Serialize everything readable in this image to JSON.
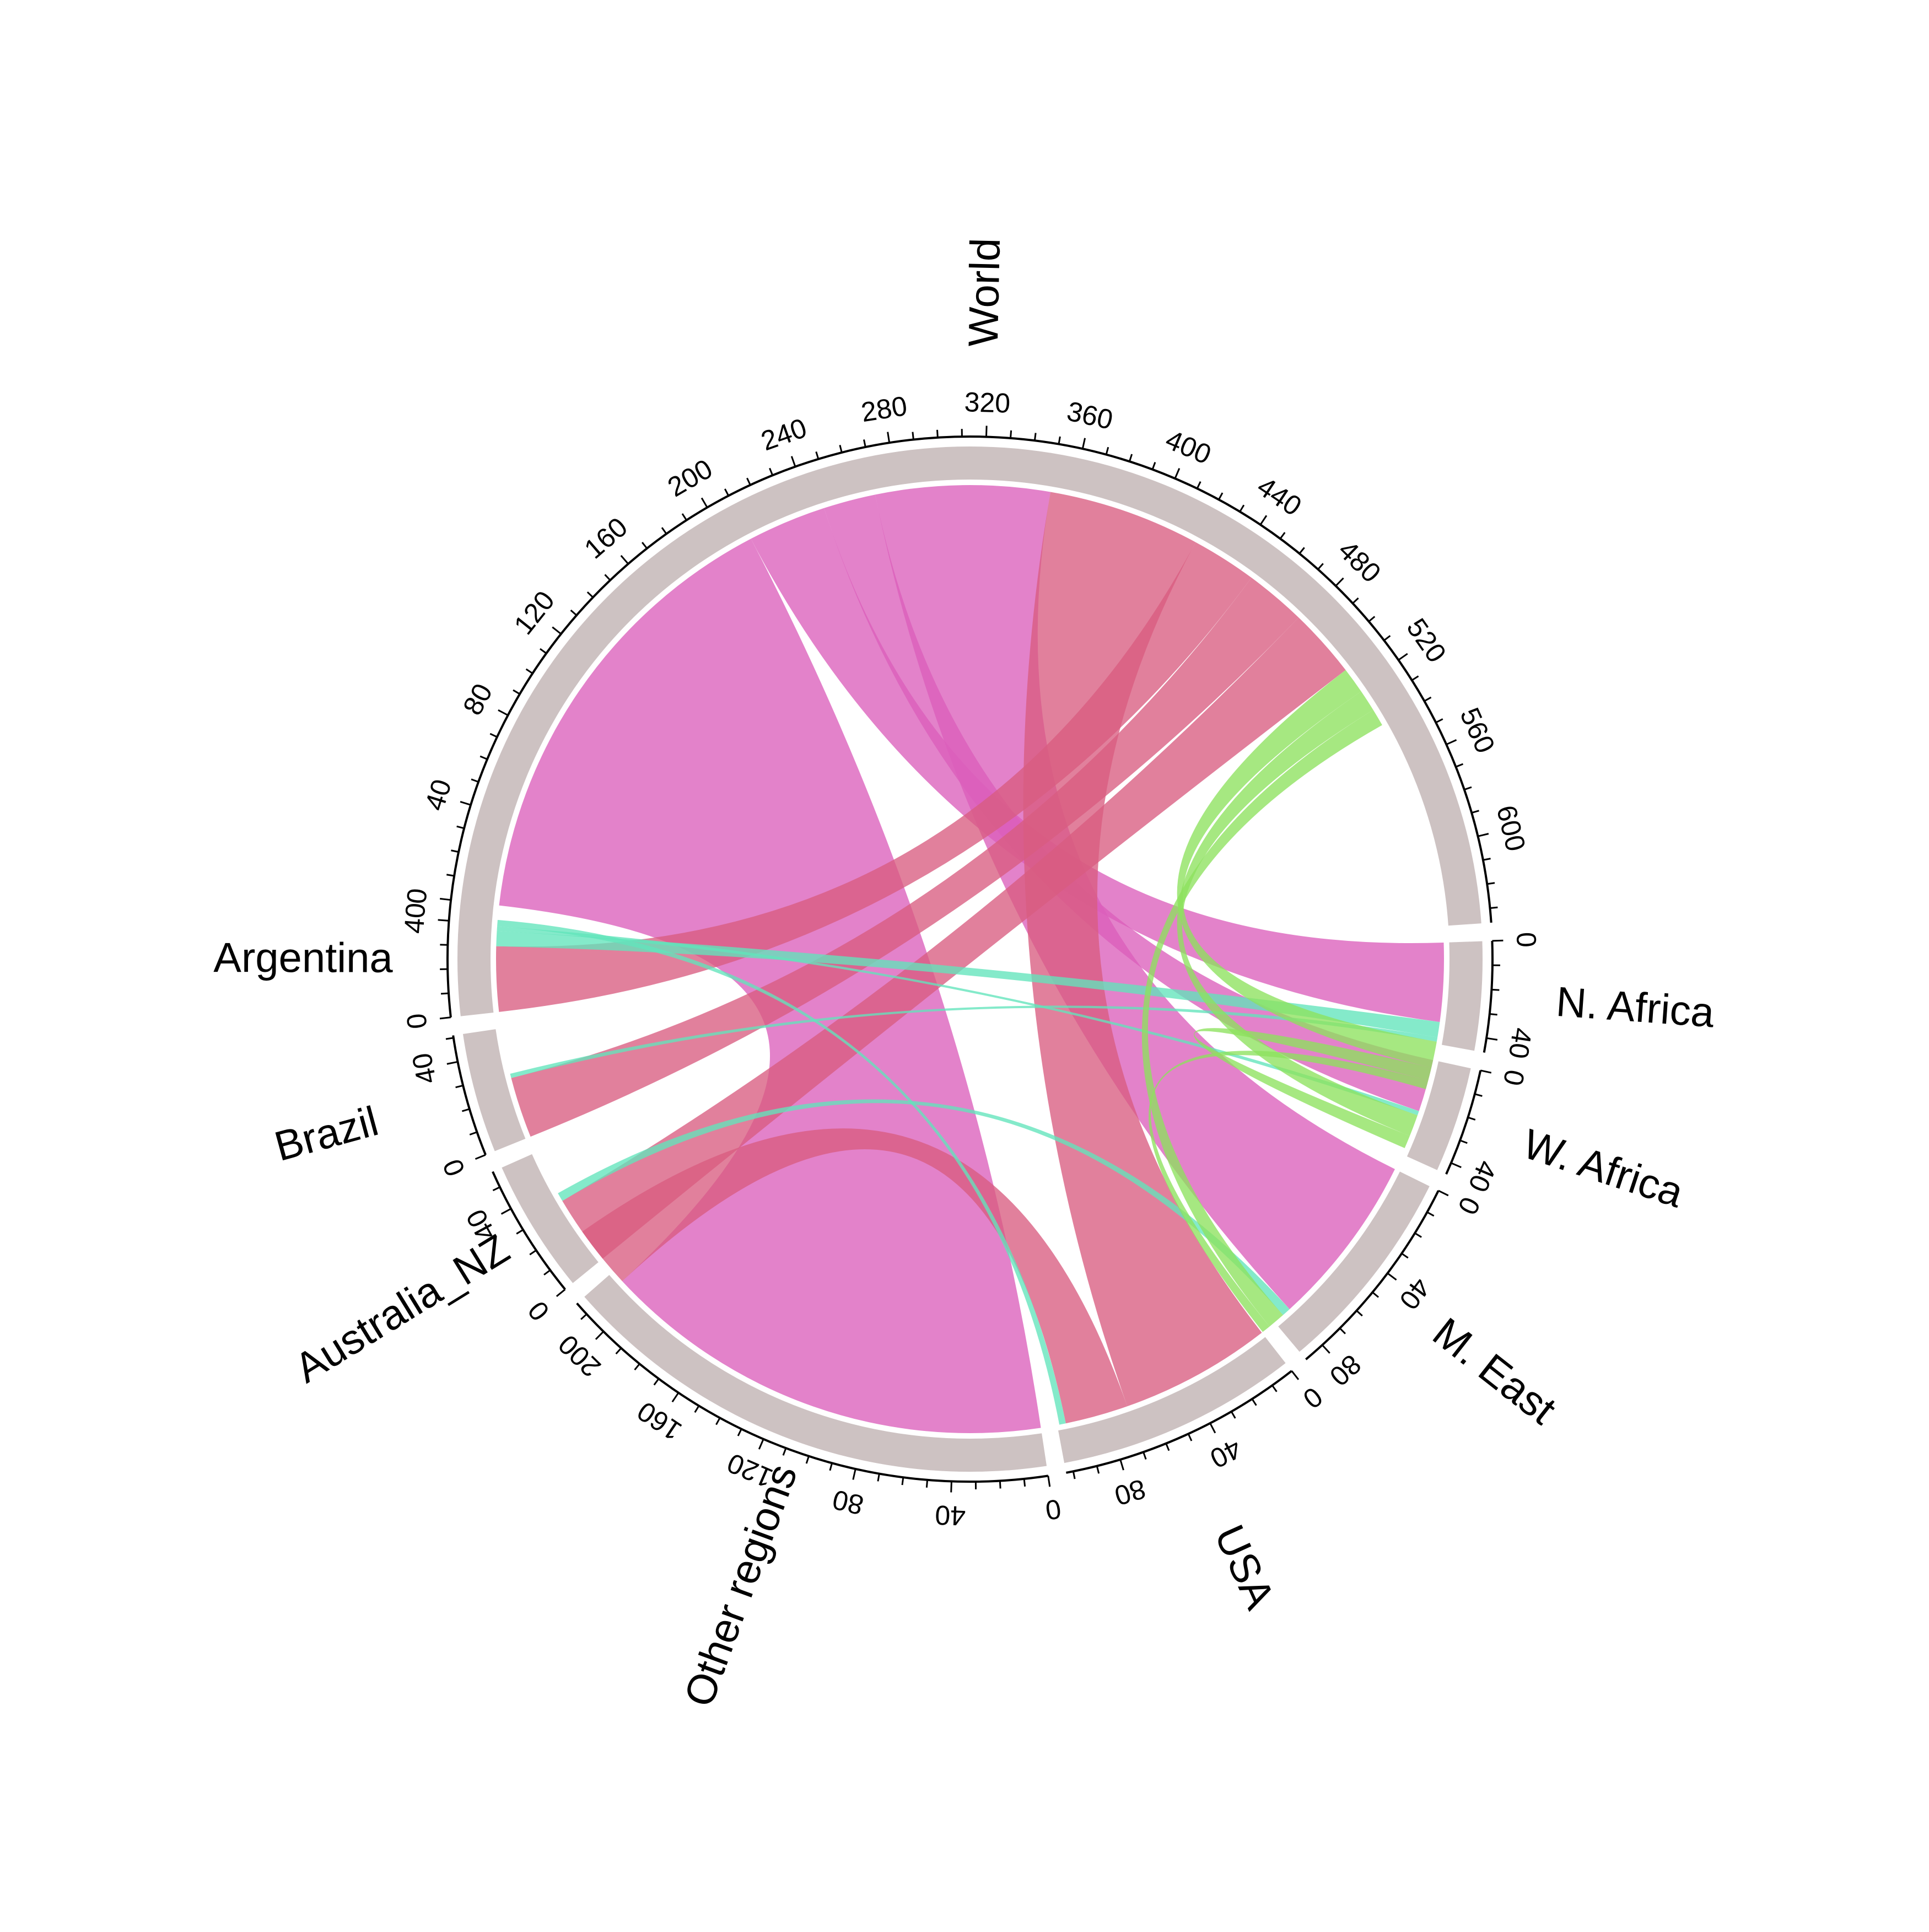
{
  "chart_data": {
    "type": "chord",
    "title": "",
    "sectors": [
      {
        "name": "World",
        "total": 636,
        "start_deg": -83.5,
        "end_deg": 86.0,
        "ticks": [
          0,
          40,
          80,
          120,
          160,
          200,
          240,
          280,
          320,
          360,
          400,
          440,
          480,
          520,
          560,
          600
        ]
      },
      {
        "name": "N. Africa",
        "total": 46,
        "start_deg": 88.0,
        "end_deg": 100.3,
        "ticks": [
          0,
          40
        ]
      },
      {
        "name": "W. Africa",
        "total": 45,
        "start_deg": 102.3,
        "end_deg": 114.3,
        "ticks": [
          0,
          40
        ]
      },
      {
        "name": "M. East",
        "total": 89,
        "start_deg": 116.3,
        "end_deg": 140.0,
        "ticks": [
          0,
          40,
          80
        ]
      },
      {
        "name": "USA",
        "total": 103,
        "start_deg": 142.0,
        "end_deg": 169.4,
        "ticks": [
          0,
          40,
          80
        ]
      },
      {
        "name": "Other regions",
        "total": 216,
        "start_deg": 171.4,
        "end_deg": 228.8,
        "ticks": [
          0,
          40,
          80,
          120,
          160,
          200
        ]
      },
      {
        "name": "Australia_NZ",
        "total": 57,
        "start_deg": 230.8,
        "end_deg": 246.0,
        "ticks": [
          0,
          40
        ]
      },
      {
        "name": "Brazil",
        "total": 51,
        "start_deg": 248.0,
        "end_deg": 261.6,
        "ticks": [
          0,
          40
        ]
      },
      {
        "name": "Argentina",
        "total": 49,
        "start_deg": 263.6,
        "end_deg": 276.6,
        "ticks": [
          0,
          40
        ]
      }
    ],
    "links": [
      {
        "from": "World",
        "to": "Other regions",
        "value": 210,
        "color": "#db5fbb"
      },
      {
        "from": "World",
        "to": "N. Africa",
        "value": 36,
        "color": "#db5fbb"
      },
      {
        "from": "World",
        "to": "W. Africa",
        "value": 24,
        "color": "#db5fbb"
      },
      {
        "from": "World",
        "to": "M. East",
        "value": 80,
        "color": "#db5fbb"
      },
      {
        "from": "USA",
        "to": "World",
        "value": 70,
        "color": "#d95c80"
      },
      {
        "from": "Argentina",
        "to": "World",
        "value": 30,
        "color": "#d95c80"
      },
      {
        "from": "Brazil",
        "to": "World",
        "value": 28,
        "color": "#d95c80"
      },
      {
        "from": "Australia_NZ",
        "to": "World",
        "value": 32,
        "color": "#d95c80"
      },
      {
        "from": "USA",
        "to": "Other regions",
        "value": 29,
        "color": "#d95c80"
      },
      {
        "from": "Argentina",
        "to": "N. Africa",
        "value": 7,
        "color": "#61e4bb"
      },
      {
        "from": "Argentina",
        "to": "W. Africa",
        "value": 2,
        "color": "#61e4bb"
      },
      {
        "from": "Brazil",
        "to": "N. Africa",
        "value": 2,
        "color": "#61e4bb"
      },
      {
        "from": "Australia_NZ",
        "to": "M. East",
        "value": 4,
        "color": "#61e4bb"
      },
      {
        "from": "Argentina",
        "to": "USA",
        "value": 3,
        "color": "#61e4bb"
      },
      {
        "from": "N. Africa",
        "to": "World",
        "value": 12,
        "color": "#8de25e"
      },
      {
        "from": "W. Africa",
        "to": "World",
        "value": 10,
        "color": "#8de25e"
      },
      {
        "from": "M. East",
        "to": "World",
        "value": 8,
        "color": "#8de25e"
      },
      {
        "from": "N. Africa",
        "to": "W. Africa",
        "value": 6,
        "color": "#8de25e"
      },
      {
        "from": "N. Africa",
        "to": "M. East",
        "value": 4,
        "color": "#8de25e"
      }
    ],
    "colors": {
      "ring": "#cdc2c2",
      "gap": "#ffffff"
    },
    "grid": false,
    "legend": "none"
  }
}
